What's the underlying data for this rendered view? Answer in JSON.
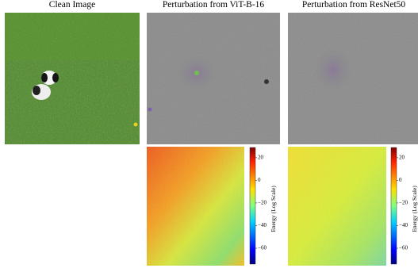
{
  "panels": [
    {
      "title": "Clean Image"
    },
    {
      "title": "Perturbation from ViT-B-16"
    },
    {
      "title": "Perturbation from ResNet50"
    }
  ],
  "colorbars": [
    {
      "label": "Energy (Log Scale)",
      "lim": [
        -74,
        29
      ],
      "ticks": [
        {
          "value": 20,
          "label": "20"
        },
        {
          "value": 0,
          "label": "0"
        },
        {
          "value": -20,
          "label": "−20"
        },
        {
          "value": -40,
          "label": "−40"
        },
        {
          "value": -60,
          "label": "−60"
        }
      ]
    },
    {
      "label": "Energy (Log Scale)",
      "lim": [
        -74,
        29
      ],
      "ticks": [
        {
          "value": 20,
          "label": "20"
        },
        {
          "value": 0,
          "label": "0"
        },
        {
          "value": -20,
          "label": "−20"
        },
        {
          "value": -40,
          "label": "−40"
        },
        {
          "value": -60,
          "label": "−60"
        }
      ]
    }
  ]
}
